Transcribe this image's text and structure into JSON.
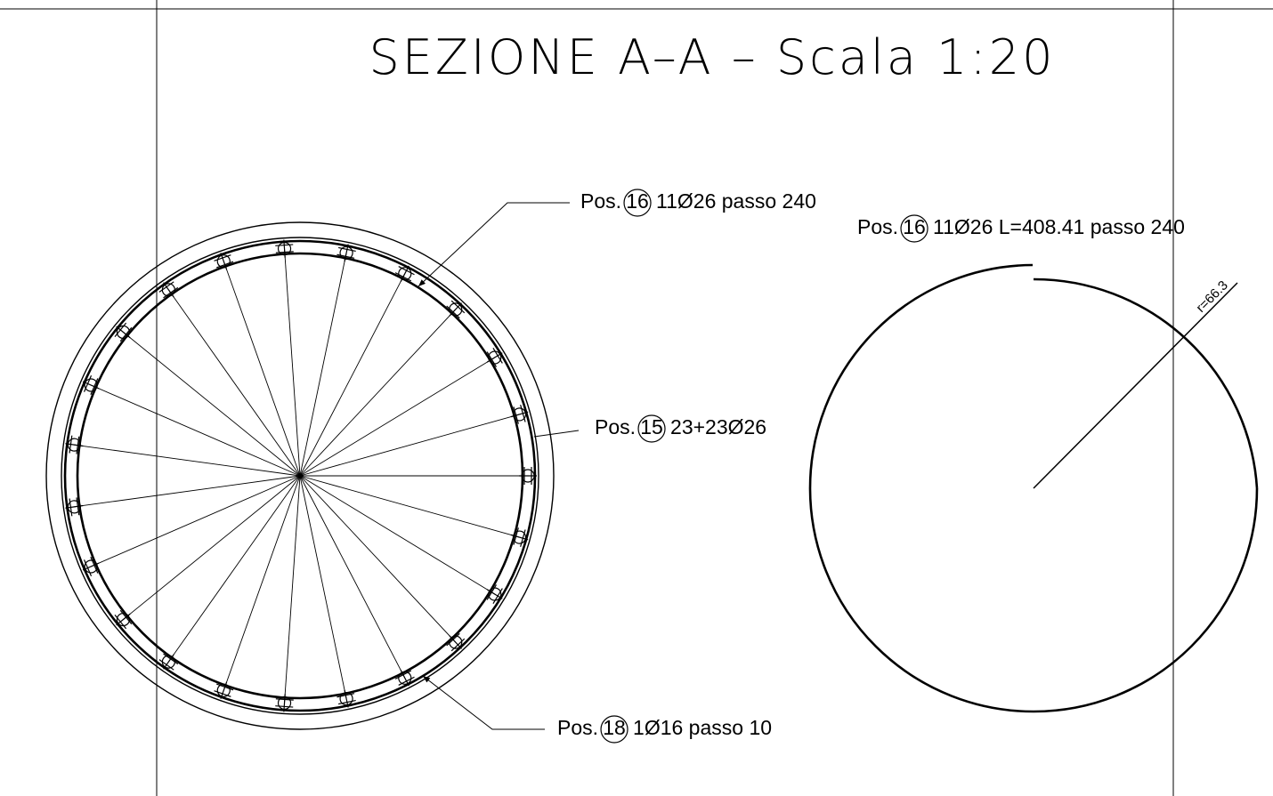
{
  "title": "SEZIONE A–A – Scala 1:20",
  "labels": [
    {
      "prefix": "Pos.",
      "pos": "16",
      "text": "11Ø26 passo 240"
    },
    {
      "prefix": "Pos.",
      "pos": "15",
      "text": "23+23Ø26"
    },
    {
      "prefix": "Pos.",
      "pos": "18",
      "text": "1Ø16 passo 10"
    },
    {
      "prefix": "Pos.",
      "pos": "16",
      "text": "11Ø26 L=408.41 passo 240"
    }
  ],
  "dimension": "r=66.3"
}
